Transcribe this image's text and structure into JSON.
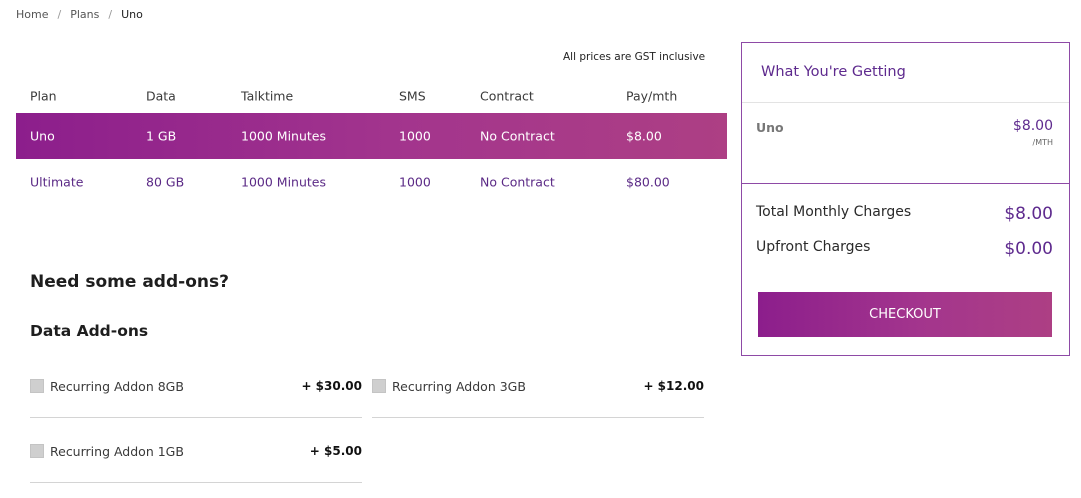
{
  "breadcrumb": {
    "home": "Home",
    "plans": "Plans",
    "current": "Uno",
    "separator": "/"
  },
  "gst_note": "All prices are GST inclusive",
  "plans_table": {
    "headers": {
      "plan": "Plan",
      "data": "Data",
      "talktime": "Talktime",
      "sms": "SMS",
      "contract": "Contract",
      "pay": "Pay/mth"
    },
    "rows": [
      {
        "plan": "Uno",
        "data": "1 GB",
        "talktime": "1000 Minutes",
        "sms": "1000",
        "contract": "No Contract",
        "pay": "$8.00",
        "selected": true
      },
      {
        "plan": "Ultimate",
        "data": "80 GB",
        "talktime": "1000 Minutes",
        "sms": "1000",
        "contract": "No Contract",
        "pay": "$80.00",
        "selected": false
      }
    ]
  },
  "addons": {
    "title": "Need some add-ons?",
    "section": "Data Add-ons",
    "items": [
      {
        "name": "Recurring Addon 8GB",
        "price": "+ $30.00",
        "checked": false
      },
      {
        "name": "Recurring Addon 3GB",
        "price": "+ $12.00",
        "checked": false
      },
      {
        "name": "Recurring Addon 1GB",
        "price": "+ $5.00",
        "checked": false
      }
    ]
  },
  "summary": {
    "title": "What You're Getting",
    "plan_name": "Uno",
    "plan_price": "$8.00",
    "plan_unit": "/MTH",
    "monthly_label": "Total Monthly Charges",
    "monthly_amount": "$8.00",
    "upfront_label": "Upfront Charges",
    "upfront_amount": "$0.00",
    "checkout_label": "CHECKOUT"
  },
  "colors": {
    "accent_purple": "#5e2a8e",
    "selected_gradient_start": "#8c1e8c",
    "selected_gradient_end": "#ad3f84",
    "panel_border": "#8e4aa6"
  }
}
